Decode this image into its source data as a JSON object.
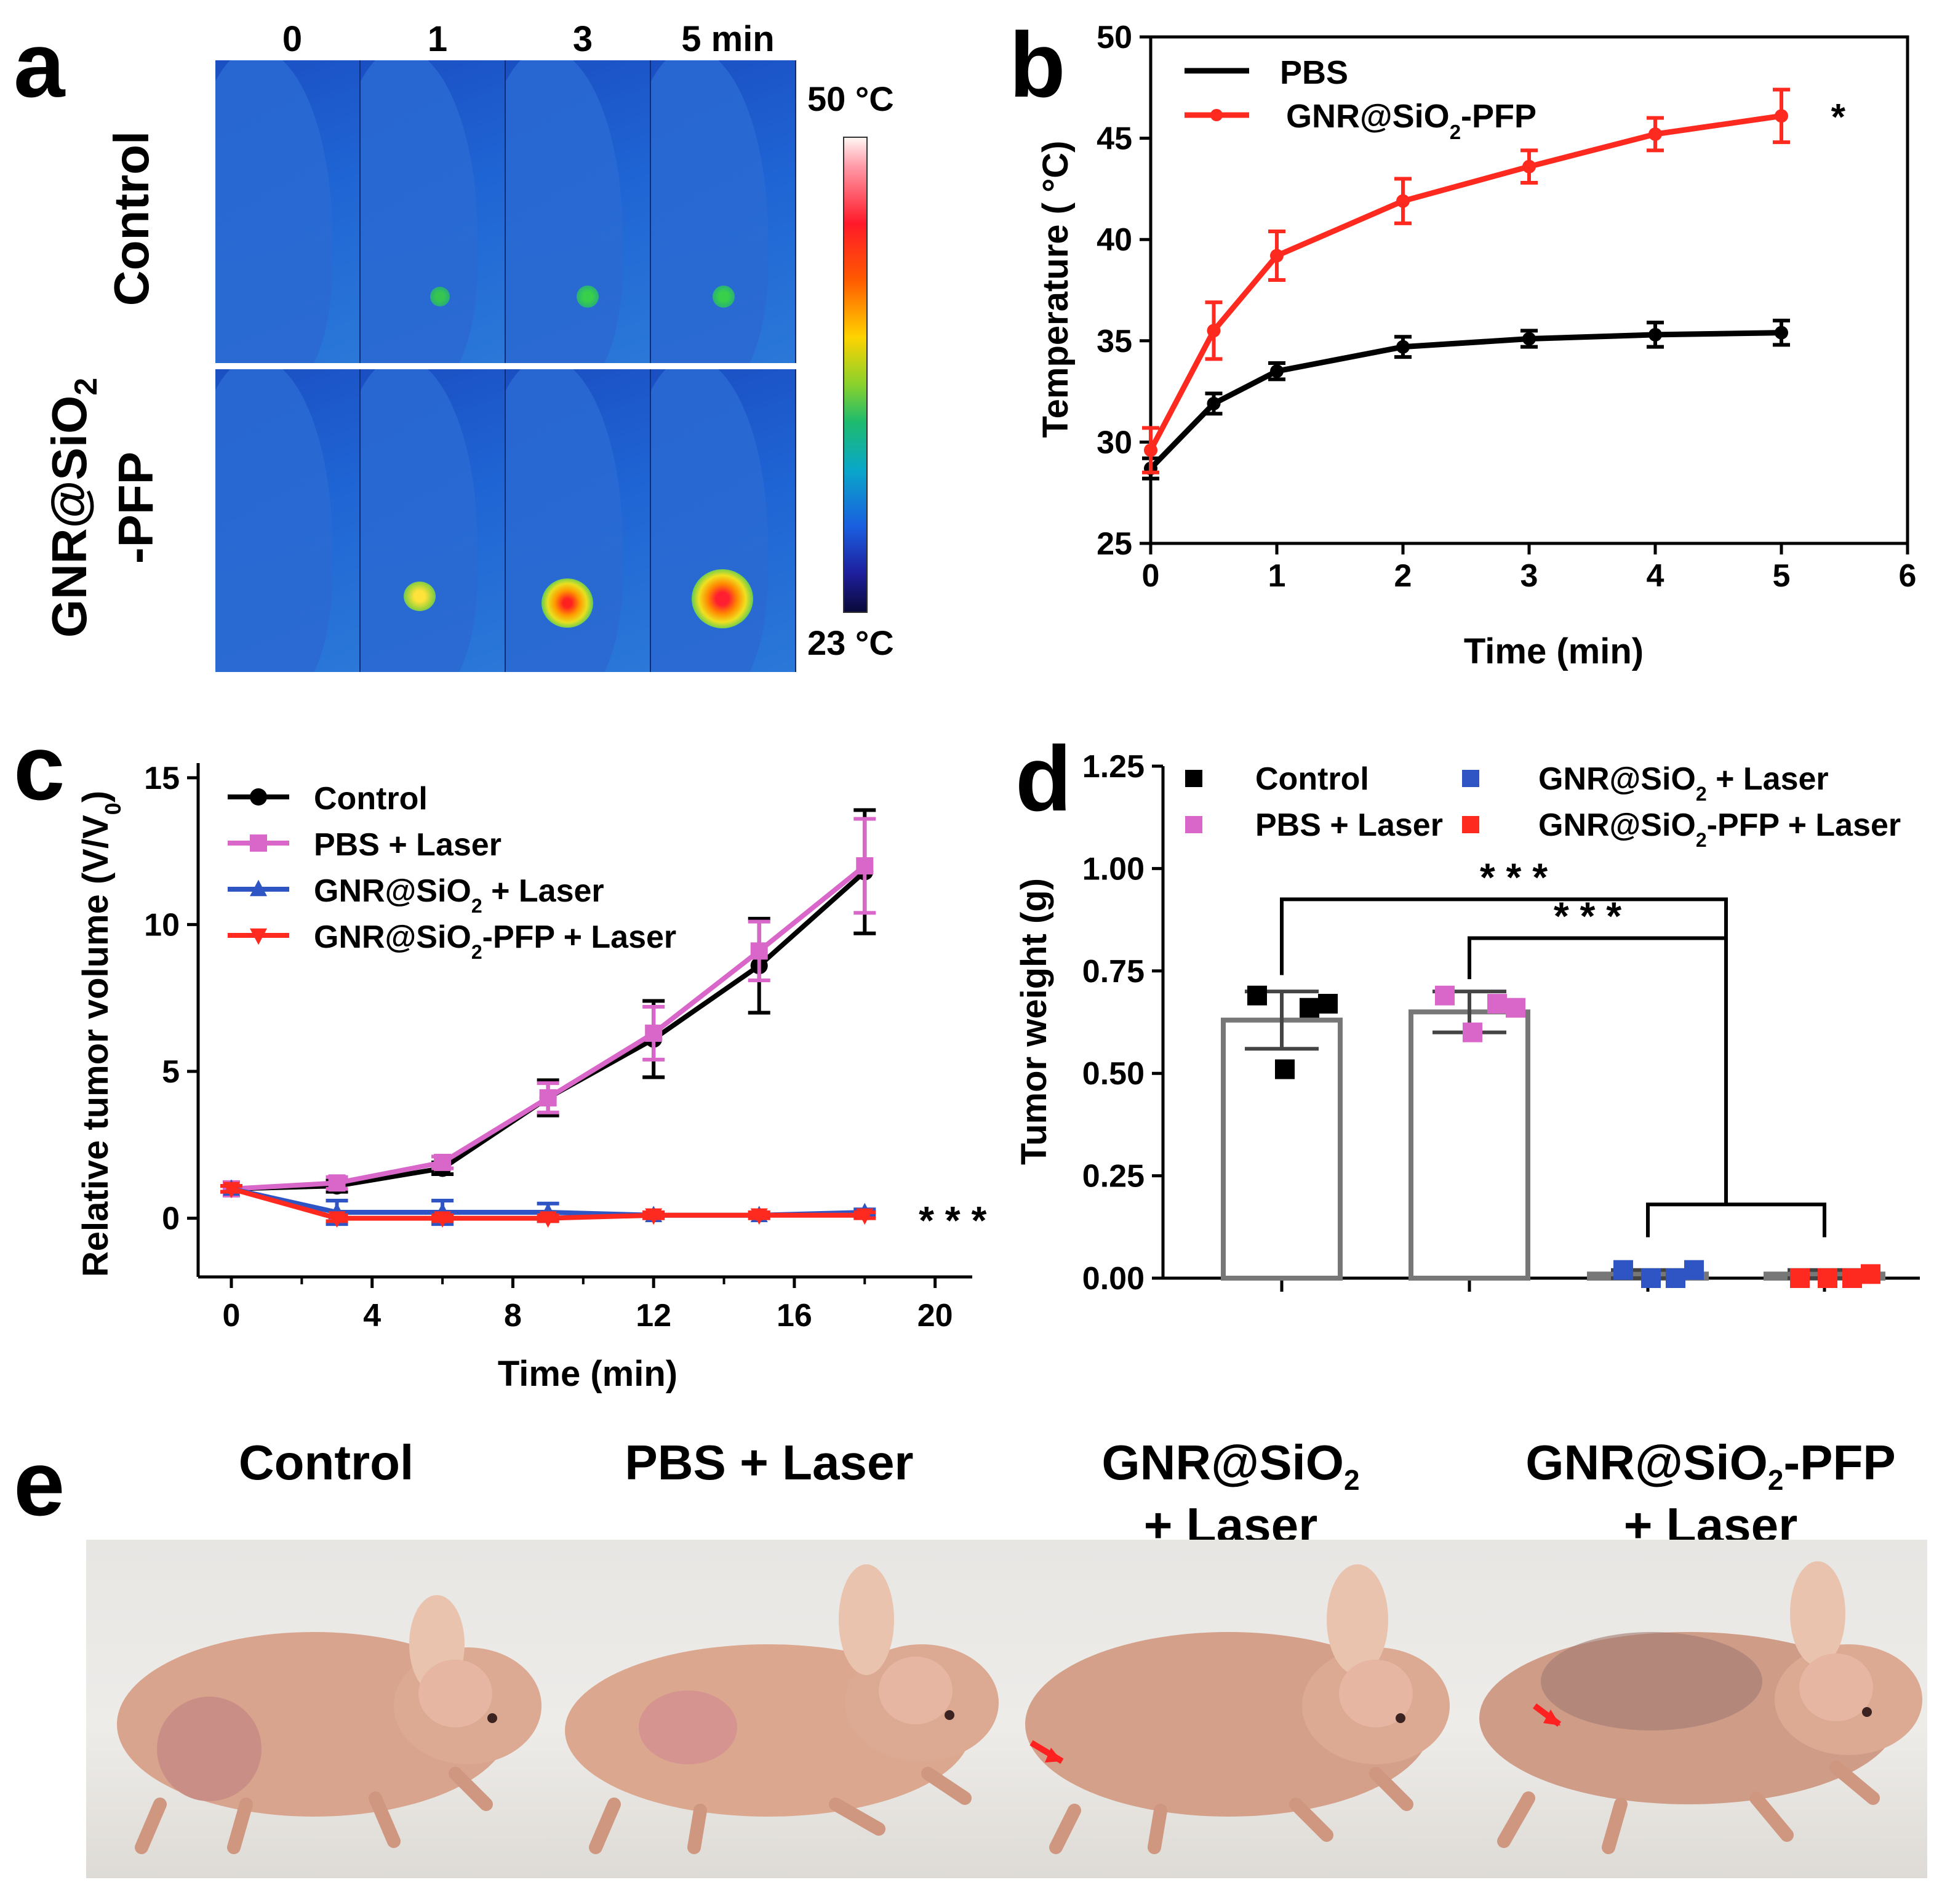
{
  "panel_labels": {
    "a": "a",
    "b": "b",
    "c": "c",
    "d": "d",
    "e": "e"
  },
  "panel_a": {
    "time_labels": [
      "0",
      "1",
      "3",
      "5 min"
    ],
    "row_labels": {
      "control": "Control",
      "gnr_line1": "GNR@SiO",
      "gnr_sub": "2",
      "gnr_line2": "-PFP"
    },
    "colorbar": {
      "max": "50 °C",
      "min": "23 °C"
    }
  },
  "chart_data": [
    {
      "id": "b",
      "type": "line",
      "xlabel": "Time (min)",
      "ylabel": "Temperature ( °C)",
      "xlim": [
        0,
        6
      ],
      "ylim": [
        25,
        50
      ],
      "xticks": [
        0,
        1,
        2,
        3,
        4,
        5,
        6
      ],
      "yticks": [
        25,
        30,
        35,
        40,
        45,
        50
      ],
      "x": [
        0,
        0.5,
        1,
        2,
        3,
        4,
        5
      ],
      "series": [
        {
          "name": "PBS",
          "color": "#000000",
          "values": [
            28.7,
            31.9,
            33.5,
            34.7,
            35.1,
            35.3,
            35.4
          ],
          "errors": [
            0.5,
            0.5,
            0.4,
            0.5,
            0.4,
            0.6,
            0.6
          ]
        },
        {
          "name": "GNR@SiO2-PFP",
          "name_main": "GNR@SiO",
          "name_sub": "2",
          "name_tail": "-PFP",
          "color": "#ff2a1f",
          "values": [
            29.6,
            35.5,
            39.2,
            41.9,
            43.6,
            45.2,
            46.1
          ],
          "errors": [
            1.1,
            1.4,
            1.2,
            1.1,
            0.8,
            0.8,
            1.3
          ]
        }
      ],
      "annotation": "*"
    },
    {
      "id": "c",
      "type": "line",
      "xlabel": "Time (min)",
      "ylabel": "Relative tumor volume  (V/V",
      "ylabel_sub": "0",
      "ylabel_tail": ")",
      "xlim": [
        0,
        22
      ],
      "ylim": [
        -2,
        15.5
      ],
      "xticks": [
        0,
        4,
        8,
        12,
        16,
        20
      ],
      "yticks": [
        0,
        5,
        10,
        15
      ],
      "x": [
        0,
        3,
        6,
        9,
        12,
        15,
        18
      ],
      "series": [
        {
          "name": "Control",
          "color": "#000000",
          "marker": "circle",
          "values": [
            1.0,
            1.1,
            1.7,
            4.1,
            6.1,
            8.6,
            11.8
          ],
          "errors": [
            0.1,
            0.2,
            0.2,
            0.6,
            1.3,
            1.6,
            2.1
          ]
        },
        {
          "name": "PBS + Laser",
          "color": "#d867c9",
          "marker": "square",
          "values": [
            1.0,
            1.2,
            1.9,
            4.1,
            6.3,
            9.1,
            12.0
          ],
          "errors": [
            0.1,
            0.2,
            0.2,
            0.5,
            0.9,
            1.0,
            1.6
          ]
        },
        {
          "name": "GNR@SiO2 + Laser",
          "name_main": "GNR@SiO",
          "name_sub": "2",
          "name_tail": " + Laser",
          "color": "#2f55c4",
          "marker": "triangle",
          "values": [
            1.0,
            0.2,
            0.2,
            0.2,
            0.1,
            0.1,
            0.2
          ],
          "errors": [
            0.1,
            0.4,
            0.4,
            0.3,
            0.1,
            0.1,
            0.1
          ]
        },
        {
          "name": "GNR@SiO2-PFP + Laser",
          "name_main": "GNR@SiO",
          "name_sub": "2",
          "name_tail": "-PFP + Laser",
          "color": "#ff2a1f",
          "marker": "triangle-down",
          "values": [
            1.0,
            0.0,
            0.0,
            0.0,
            0.1,
            0.1,
            0.1
          ],
          "errors": [
            0.1,
            0.1,
            0.1,
            0.1,
            0.1,
            0.1,
            0.1
          ]
        }
      ],
      "annotation": "* * *"
    },
    {
      "id": "d",
      "type": "bar",
      "ylabel": "Tumor weight (g)",
      "ylim": [
        0,
        1.25
      ],
      "yticks": [
        "0.00",
        "0.25",
        "0.50",
        "0.75",
        "1.00",
        "1.25"
      ],
      "categories": [
        "Control",
        "PBS + Laser",
        "GNR@SiO2 + Laser",
        "GNR@SiO2-PFP + Laser"
      ],
      "legend": [
        {
          "name": "Control",
          "color": "#000000"
        },
        {
          "name": "PBS + Laser",
          "color": "#d867c9"
        },
        {
          "name": "GNR@SiO2 + Laser",
          "name_main": "GNR@SiO",
          "name_sub": "2",
          "name_tail": " + Laser",
          "color": "#2f55c4"
        },
        {
          "name": "GNR@SiO2-PFP + Laser",
          "name_main": "GNR@SiO",
          "name_sub": "2",
          "name_tail": "-PFP + Laser",
          "color": "#ff2a1f"
        }
      ],
      "values": [
        0.63,
        0.65,
        0.01,
        0.01
      ],
      "errors": [
        0.07,
        0.05,
        0.01,
        0.01
      ],
      "points": [
        [
          0.69,
          0.66,
          0.51,
          0.67
        ],
        [
          0.69,
          0.67,
          0.6,
          0.66
        ],
        [
          0.02,
          0.0,
          0.0,
          0.02
        ],
        [
          0.0,
          0.0,
          0.0,
          0.01
        ]
      ],
      "significance": [
        "* * *",
        "* * *"
      ]
    }
  ],
  "panel_e": {
    "labels": [
      {
        "line1": "Control",
        "line2": ""
      },
      {
        "line1": "PBS + Laser",
        "line2": ""
      },
      {
        "line1": "GNR@SiO",
        "sub": "2",
        "line2": "+ Laser"
      },
      {
        "line1": "GNR@SiO",
        "sub": "2",
        "tail": "-PFP",
        "line2": "+ Laser"
      }
    ]
  }
}
